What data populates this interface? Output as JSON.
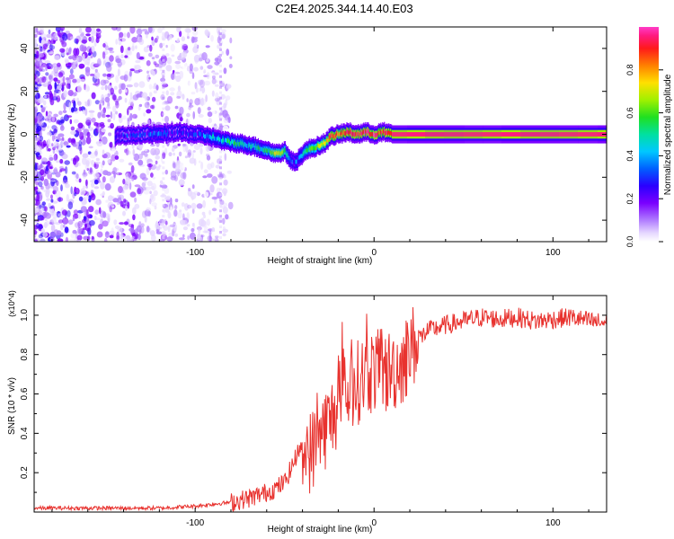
{
  "title": "C2E4.2025.344.14.40.E03",
  "colors": {
    "signal": "#e8322e",
    "axis": "#000000"
  },
  "chart_data": [
    {
      "type": "heatmap",
      "title": "C2E4.2025.344.14.40.E03",
      "xlabel": "Height of straight line (km)",
      "ylabel": "Frequency (Hz)",
      "xlim": [
        -190,
        130
      ],
      "ylim": [
        -50,
        50
      ],
      "x_ticks": [
        -100,
        0,
        100
      ],
      "x_tick_labels": [
        "-100",
        "0",
        "100"
      ],
      "y_ticks": [
        -40,
        -20,
        0,
        20,
        40
      ],
      "y_tick_labels": [
        "-40",
        "-20",
        "0",
        "20",
        "40"
      ],
      "colorbar": {
        "label": "Normalized spectral amplitude",
        "range": [
          0,
          1
        ],
        "ticks": [
          0.0,
          0.2,
          0.4,
          0.6,
          0.8
        ],
        "tick_labels": [
          "0.0",
          "0.2",
          "0.4",
          "0.6",
          "0.8"
        ],
        "colormap": [
          "#ffffff",
          "#e6d8ff",
          "#b07cff",
          "#7a00ff",
          "#2a00ff",
          "#0060ff",
          "#00c8ff",
          "#00e0a0",
          "#20e020",
          "#a0f000",
          "#ffe000",
          "#ff8000",
          "#ff1a1a",
          "#ff1a80",
          "#ff3cc8"
        ]
      },
      "ridge": {
        "x": [
          -145,
          -130,
          -120,
          -110,
          -100,
          -92,
          -85,
          -78,
          -70,
          -62,
          -55,
          -50,
          -46,
          -43,
          -40,
          -37,
          -33,
          -28,
          -24,
          -20,
          -15,
          -10,
          -5,
          0,
          5,
          10,
          130
        ],
        "frequency": [
          -1,
          0,
          0,
          1,
          0,
          -1,
          -3,
          -4,
          -5,
          -7,
          -9,
          -8,
          -13,
          -12,
          -9,
          -7,
          -6,
          -4,
          -1,
          0,
          1,
          0,
          1,
          0,
          1,
          0,
          0
        ],
        "amplitude": [
          0.25,
          0.3,
          0.35,
          0.3,
          0.3,
          0.4,
          0.45,
          0.5,
          0.45,
          0.5,
          0.7,
          0.6,
          0.35,
          0.35,
          0.45,
          0.55,
          0.6,
          0.7,
          0.85,
          0.8,
          0.9,
          0.85,
          0.9,
          0.9,
          0.85,
          0.9,
          0.9
        ]
      },
      "noise_region": "x < -80 km"
    },
    {
      "type": "line",
      "xlabel": "Height of straight line (km)",
      "ylabel": "SNR (10 * v/v)",
      "y_multiplier": "(x10^4)",
      "xlim": [
        -190,
        130
      ],
      "ylim": [
        0,
        1.1
      ],
      "x_ticks": [
        -100,
        0,
        100
      ],
      "x_tick_labels": [
        "-100",
        "0",
        "100"
      ],
      "y_ticks": [
        0.2,
        0.4,
        0.6,
        0.8,
        1.0
      ],
      "y_tick_labels": [
        "0.2",
        "0.4",
        "0.6",
        "0.8",
        "1.0"
      ],
      "series": [
        {
          "name": "SNR",
          "x": [
            -190,
            -150,
            -120,
            -100,
            -80,
            -70,
            -60,
            -55,
            -50,
            -45,
            -40,
            -35,
            -30,
            -25,
            -20,
            -15,
            -10,
            -5,
            0,
            5,
            10,
            15,
            20,
            25,
            30,
            40,
            50,
            60,
            70,
            80,
            90,
            100,
            110,
            120,
            130
          ],
          "y": [
            0.02,
            0.02,
            0.02,
            0.03,
            0.05,
            0.07,
            0.1,
            0.12,
            0.15,
            0.25,
            0.35,
            0.3,
            0.4,
            0.45,
            0.55,
            0.6,
            0.65,
            0.7,
            0.72,
            0.7,
            0.72,
            0.75,
            0.82,
            0.88,
            0.92,
            0.95,
            0.97,
            0.99,
            0.98,
            0.99,
            0.97,
            0.98,
            0.99,
            0.97,
            0.96
          ]
        }
      ]
    }
  ]
}
